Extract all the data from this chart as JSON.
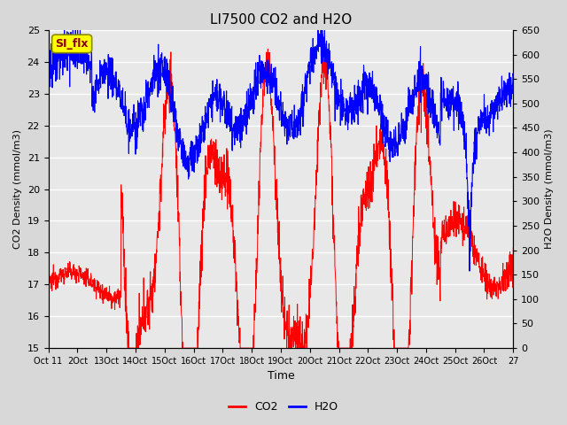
{
  "title": "LI7500 CO2 and H2O",
  "xlabel": "Time",
  "ylabel_left": "CO2 Density (mmol/m3)",
  "ylabel_right": "H2O Density (mmol/m3)",
  "ylim_left": [
    15.0,
    25.0
  ],
  "ylim_right": [
    0,
    650
  ],
  "yticks_left": [
    15.0,
    16.0,
    17.0,
    18.0,
    19.0,
    20.0,
    21.0,
    22.0,
    23.0,
    24.0,
    25.0
  ],
  "yticks_right": [
    0,
    50,
    100,
    150,
    200,
    250,
    300,
    350,
    400,
    450,
    500,
    550,
    600,
    650
  ],
  "xtick_labels": [
    "Oct 11",
    "2Oct",
    "13Oct",
    "14Oct",
    "15Oct",
    "16Oct",
    "17Oct",
    "18Oct",
    "19Oct",
    "20Oct",
    "21Oct",
    "22Oct",
    "23Oct",
    "24Oct",
    "25Oct",
    "26Oct",
    "27"
  ],
  "co2_color": "#FF0000",
  "h2o_color": "#0000FF",
  "legend_label": "SI_flx",
  "legend_bg": "#FFFF00",
  "bg_color": "#D8D8D8",
  "plot_bg": "#E8E8E8",
  "grid_color": "#FFFFFF",
  "n_points": 2000
}
